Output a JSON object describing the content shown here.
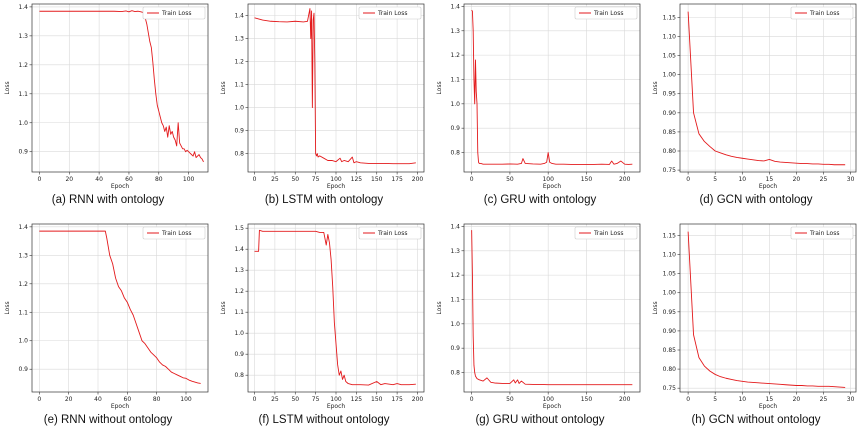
{
  "chart_data": [
    {
      "id": "a",
      "type": "line",
      "caption": "(a) RNN with ontology",
      "xlabel": "Epoch",
      "ylabel": "Loss",
      "legend": "Train Loss",
      "legend_loc": "top-right",
      "color": "#e31a1c",
      "grid": true,
      "xlim": [
        -5,
        113
      ],
      "ylim": [
        0.83,
        1.41
      ],
      "xticks": [
        0,
        20,
        40,
        60,
        80,
        100
      ],
      "xticklabels": [
        "0",
        "20",
        "40",
        "60",
        "80",
        "100"
      ],
      "yticks": [
        0.9,
        1.0,
        1.1,
        1.2,
        1.3,
        1.4
      ],
      "yticklabels": [
        "0.9",
        "1.0",
        "1.1",
        "1.2",
        "1.3",
        "1.4"
      ],
      "x": [
        0,
        10,
        20,
        30,
        40,
        50,
        55,
        58,
        60,
        62,
        64,
        66,
        68,
        70,
        72,
        74,
        75,
        76,
        77,
        78,
        79,
        80,
        81,
        82,
        83,
        84,
        85,
        86,
        87,
        88,
        89,
        90,
        91,
        92,
        93,
        94,
        95,
        96,
        97,
        98,
        99,
        100,
        101,
        102,
        103,
        104,
        105,
        106,
        107,
        108,
        109,
        110
      ],
      "y": [
        1.385,
        1.385,
        1.385,
        1.385,
        1.385,
        1.385,
        1.384,
        1.386,
        1.383,
        1.387,
        1.384,
        1.385,
        1.383,
        1.38,
        1.34,
        1.28,
        1.26,
        1.21,
        1.15,
        1.1,
        1.06,
        1.04,
        1.02,
        1.0,
        0.99,
        0.97,
        0.985,
        0.95,
        0.99,
        0.96,
        0.97,
        0.95,
        0.94,
        0.92,
        1.0,
        0.93,
        0.92,
        0.91,
        0.91,
        0.9,
        0.905,
        0.9,
        0.895,
        0.89,
        0.885,
        0.9,
        0.88,
        0.885,
        0.89,
        0.88,
        0.875,
        0.865
      ]
    },
    {
      "id": "b",
      "type": "line",
      "caption": "(b) LSTM with ontology",
      "xlabel": "Epoch",
      "ylabel": "Loss",
      "legend": "Train Loss",
      "legend_loc": "top-right",
      "color": "#e31a1c",
      "grid": true,
      "xlim": [
        -8,
        208
      ],
      "ylim": [
        0.72,
        1.45
      ],
      "xticks": [
        0,
        25,
        50,
        75,
        100,
        125,
        150,
        175,
        200
      ],
      "xticklabels": [
        "0",
        "25",
        "50",
        "75",
        "100",
        "125",
        "150",
        "175",
        "200"
      ],
      "yticks": [
        0.8,
        0.9,
        1.0,
        1.1,
        1.2,
        1.3,
        1.4
      ],
      "yticklabels": [
        "0.8",
        "0.9",
        "1.0",
        "1.1",
        "1.2",
        "1.3",
        "1.4"
      ],
      "x": [
        0,
        5,
        10,
        20,
        30,
        40,
        50,
        60,
        65,
        68,
        69,
        70,
        71,
        72,
        73,
        74,
        75,
        76,
        77,
        78,
        80,
        85,
        90,
        95,
        100,
        105,
        107,
        110,
        115,
        120,
        122,
        125,
        130,
        140,
        150,
        160,
        170,
        180,
        190,
        198
      ],
      "y": [
        1.39,
        1.385,
        1.38,
        1.375,
        1.373,
        1.372,
        1.375,
        1.372,
        1.375,
        1.43,
        1.3,
        1.42,
        1.0,
        1.38,
        1.41,
        1.2,
        0.8,
        0.79,
        0.8,
        0.785,
        0.79,
        0.78,
        0.77,
        0.77,
        0.765,
        0.78,
        0.765,
        0.77,
        0.765,
        0.785,
        0.76,
        0.765,
        0.76,
        0.757,
        0.757,
        0.757,
        0.756,
        0.756,
        0.756,
        0.76
      ]
    },
    {
      "id": "c",
      "type": "line",
      "caption": "(c) GRU with ontology",
      "xlabel": "Epoch",
      "ylabel": "Loss",
      "legend": "Train Loss",
      "legend_loc": "top-right",
      "color": "#e31a1c",
      "grid": true,
      "xlim": [
        -10,
        220
      ],
      "ylim": [
        0.72,
        1.41
      ],
      "xticks": [
        0,
        50,
        100,
        150,
        200
      ],
      "xticklabels": [
        "0",
        "50",
        "100",
        "150",
        "200"
      ],
      "yticks": [
        0.8,
        0.9,
        1.0,
        1.1,
        1.2,
        1.3,
        1.4
      ],
      "yticklabels": [
        "0.8",
        "0.9",
        "1.0",
        "1.1",
        "1.2",
        "1.3",
        "1.4"
      ],
      "x": [
        0,
        1,
        2,
        3,
        4,
        5,
        6,
        7,
        8,
        9,
        10,
        12,
        15,
        20,
        30,
        40,
        50,
        60,
        65,
        67,
        70,
        80,
        90,
        95,
        98,
        100,
        102,
        105,
        110,
        120,
        130,
        140,
        150,
        160,
        170,
        180,
        183,
        186,
        190,
        195,
        200,
        205,
        210
      ],
      "y": [
        1.385,
        1.38,
        1.3,
        1.1,
        1.0,
        1.18,
        1.05,
        1.0,
        0.8,
        0.76,
        0.755,
        0.755,
        0.752,
        0.752,
        0.752,
        0.752,
        0.753,
        0.752,
        0.755,
        0.775,
        0.755,
        0.753,
        0.752,
        0.755,
        0.76,
        0.8,
        0.76,
        0.755,
        0.752,
        0.752,
        0.751,
        0.751,
        0.751,
        0.751,
        0.752,
        0.751,
        0.765,
        0.752,
        0.755,
        0.765,
        0.752,
        0.751,
        0.752
      ]
    },
    {
      "id": "d",
      "type": "line",
      "caption": "(d) GCN with ontology",
      "xlabel": "Epoch",
      "ylabel": "Loss",
      "legend": "Train Loss",
      "legend_loc": "top-right",
      "color": "#e31a1c",
      "grid": true,
      "xlim": [
        -1.5,
        31
      ],
      "ylim": [
        0.745,
        1.185
      ],
      "xticks": [
        0,
        5,
        10,
        15,
        20,
        25,
        30
      ],
      "xticklabels": [
        "0",
        "5",
        "10",
        "15",
        "20",
        "25",
        "30"
      ],
      "yticks": [
        0.75,
        0.8,
        0.85,
        0.9,
        0.95,
        1.0,
        1.05,
        1.1,
        1.15
      ],
      "yticklabels": [
        "0.75",
        "0.80",
        "0.85",
        "0.90",
        "0.95",
        "1.00",
        "1.05",
        "1.10",
        "1.15"
      ],
      "x": [
        0,
        1,
        2,
        3,
        4,
        5,
        6,
        7,
        8,
        9,
        10,
        11,
        12,
        13,
        14,
        15,
        16,
        17,
        18,
        19,
        20,
        21,
        22,
        23,
        24,
        25,
        26,
        27,
        28,
        29
      ],
      "y": [
        1.165,
        0.9,
        0.845,
        0.825,
        0.812,
        0.8,
        0.795,
        0.79,
        0.786,
        0.783,
        0.781,
        0.779,
        0.777,
        0.775,
        0.774,
        0.778,
        0.773,
        0.771,
        0.77,
        0.769,
        0.768,
        0.767,
        0.767,
        0.766,
        0.766,
        0.765,
        0.765,
        0.764,
        0.764,
        0.764
      ]
    },
    {
      "id": "e",
      "type": "line",
      "caption": "(e) RNN without ontology",
      "xlabel": "Epoch",
      "ylabel": "Loss",
      "legend": "Train Loss",
      "legend_loc": "top-right",
      "color": "#e31a1c",
      "grid": true,
      "xlim": [
        -5,
        115
      ],
      "ylim": [
        0.82,
        1.41
      ],
      "xticks": [
        0,
        20,
        40,
        60,
        80,
        100
      ],
      "xticklabels": [
        "0",
        "20",
        "40",
        "60",
        "80",
        "100"
      ],
      "yticks": [
        0.9,
        1.0,
        1.1,
        1.2,
        1.3,
        1.4
      ],
      "yticklabels": [
        "0.9",
        "1.0",
        "1.1",
        "1.2",
        "1.3",
        "1.4"
      ],
      "x": [
        0,
        10,
        20,
        30,
        40,
        45,
        46,
        48,
        50,
        52,
        54,
        56,
        58,
        60,
        62,
        64,
        66,
        68,
        70,
        72,
        74,
        76,
        78,
        80,
        82,
        84,
        86,
        88,
        90,
        92,
        94,
        96,
        98,
        100,
        102,
        104,
        106,
        108,
        110
      ],
      "y": [
        1.385,
        1.385,
        1.385,
        1.385,
        1.385,
        1.385,
        1.36,
        1.3,
        1.27,
        1.22,
        1.19,
        1.175,
        1.15,
        1.135,
        1.11,
        1.09,
        1.06,
        1.03,
        1.0,
        0.99,
        0.975,
        0.96,
        0.95,
        0.94,
        0.925,
        0.915,
        0.91,
        0.9,
        0.89,
        0.885,
        0.88,
        0.875,
        0.87,
        0.868,
        0.862,
        0.858,
        0.855,
        0.852,
        0.85
      ]
    },
    {
      "id": "f",
      "type": "line",
      "caption": "(f) LSTM without ontology",
      "xlabel": "Epoch",
      "ylabel": "Loss",
      "legend": "Train Loss",
      "legend_loc": "top-right",
      "color": "#e31a1c",
      "grid": true,
      "xlim": [
        -8,
        208
      ],
      "ylim": [
        0.72,
        1.52
      ],
      "xticks": [
        0,
        25,
        50,
        75,
        100,
        125,
        150,
        175,
        200
      ],
      "xticklabels": [
        "0",
        "25",
        "50",
        "75",
        "100",
        "125",
        "150",
        "175",
        "200"
      ],
      "yticks": [
        0.8,
        0.9,
        1.0,
        1.1,
        1.2,
        1.3,
        1.4,
        1.5
      ],
      "yticklabels": [
        "0.8",
        "0.9",
        "1.0",
        "1.1",
        "1.2",
        "1.3",
        "1.4",
        "1.5"
      ],
      "x": [
        0,
        5,
        6,
        10,
        20,
        30,
        40,
        50,
        60,
        70,
        75,
        80,
        85,
        88,
        90,
        92,
        94,
        96,
        98,
        100,
        102,
        104,
        106,
        108,
        110,
        112,
        115,
        120,
        125,
        130,
        140,
        150,
        155,
        160,
        170,
        175,
        180,
        190,
        198
      ],
      "y": [
        1.39,
        1.39,
        1.49,
        1.485,
        1.485,
        1.485,
        1.485,
        1.485,
        1.485,
        1.485,
        1.485,
        1.48,
        1.48,
        1.42,
        1.47,
        1.43,
        1.35,
        1.22,
        1.05,
        0.95,
        0.85,
        0.8,
        0.82,
        0.78,
        0.8,
        0.77,
        0.76,
        0.755,
        0.755,
        0.755,
        0.753,
        0.77,
        0.755,
        0.76,
        0.755,
        0.76,
        0.755,
        0.755,
        0.757
      ]
    },
    {
      "id": "g",
      "type": "line",
      "caption": "(g) GRU without ontology",
      "xlabel": "Epoch",
      "ylabel": "Loss",
      "legend": "Train Loss",
      "legend_loc": "top-right",
      "color": "#e31a1c",
      "grid": true,
      "xlim": [
        -10,
        220
      ],
      "ylim": [
        0.72,
        1.41
      ],
      "xticks": [
        0,
        50,
        100,
        150,
        200
      ],
      "xticklabels": [
        "0",
        "50",
        "100",
        "150",
        "200"
      ],
      "yticks": [
        0.8,
        0.9,
        1.0,
        1.1,
        1.2,
        1.3,
        1.4
      ],
      "yticklabels": [
        "0.8",
        "0.9",
        "1.0",
        "1.1",
        "1.2",
        "1.3",
        "1.4"
      ],
      "x": [
        0,
        1,
        2,
        3,
        4,
        5,
        7,
        10,
        15,
        20,
        25,
        30,
        40,
        50,
        55,
        57,
        60,
        62,
        65,
        70,
        80,
        90,
        100,
        120,
        140,
        160,
        180,
        200,
        210
      ],
      "y": [
        1.385,
        1.2,
        0.95,
        0.83,
        0.8,
        0.785,
        0.775,
        0.77,
        0.765,
        0.778,
        0.76,
        0.757,
        0.755,
        0.755,
        0.77,
        0.757,
        0.77,
        0.755,
        0.765,
        0.752,
        0.751,
        0.751,
        0.75,
        0.75,
        0.75,
        0.75,
        0.75,
        0.75,
        0.75
      ]
    },
    {
      "id": "h",
      "type": "line",
      "caption": "(h) GCN without ontology",
      "xlabel": "Epoch",
      "ylabel": "Loss",
      "legend": "Train Loss",
      "legend_loc": "top-right",
      "color": "#e31a1c",
      "grid": true,
      "xlim": [
        -1.5,
        31
      ],
      "ylim": [
        0.74,
        1.18
      ],
      "xticks": [
        0,
        5,
        10,
        15,
        20,
        25,
        30
      ],
      "xticklabels": [
        "0",
        "5",
        "10",
        "15",
        "20",
        "25",
        "30"
      ],
      "yticks": [
        0.75,
        0.8,
        0.85,
        0.9,
        0.95,
        1.0,
        1.05,
        1.1,
        1.15
      ],
      "yticklabels": [
        "0.75",
        "0.80",
        "0.85",
        "0.90",
        "0.95",
        "1.00",
        "1.05",
        "1.10",
        "1.15"
      ],
      "x": [
        0,
        1,
        2,
        3,
        4,
        5,
        6,
        7,
        8,
        9,
        10,
        11,
        12,
        13,
        14,
        15,
        16,
        17,
        18,
        19,
        20,
        21,
        22,
        23,
        24,
        25,
        26,
        27,
        28,
        29
      ],
      "y": [
        1.16,
        0.89,
        0.83,
        0.808,
        0.795,
        0.786,
        0.78,
        0.776,
        0.773,
        0.77,
        0.768,
        0.766,
        0.765,
        0.764,
        0.763,
        0.762,
        0.761,
        0.76,
        0.759,
        0.758,
        0.757,
        0.757,
        0.756,
        0.756,
        0.755,
        0.755,
        0.755,
        0.754,
        0.753,
        0.752
      ]
    }
  ]
}
